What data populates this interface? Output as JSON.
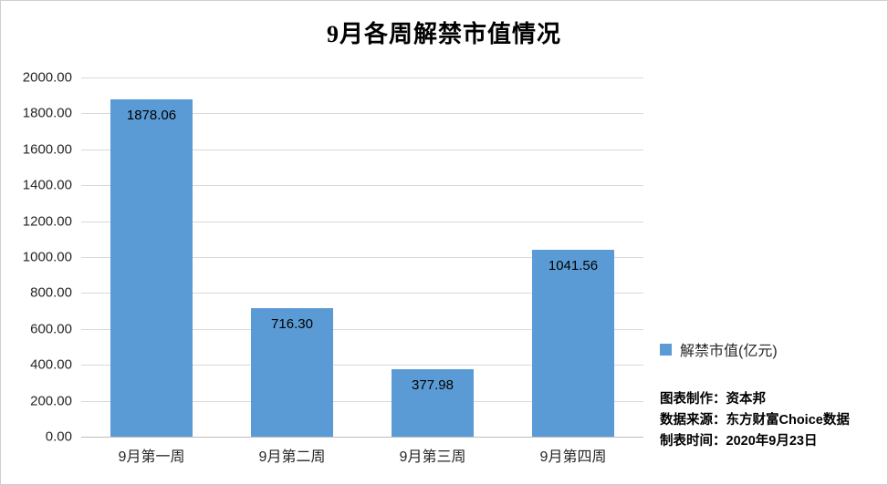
{
  "title": "9月各周解禁市值情况",
  "legend": {
    "label": "解禁市值(亿元)",
    "color": "#5B9BD5"
  },
  "notes": [
    "图表制作：资本邦",
    "数据来源：东方财富Choice数据",
    "制表时间：2020年9月23日"
  ],
  "chart_data": {
    "type": "bar",
    "categories": [
      "9月第一周",
      "9月第二周",
      "9月第三周",
      "9月第四周"
    ],
    "values": [
      1878.06,
      716.3,
      377.98,
      1041.56
    ],
    "value_labels": [
      "1878.06",
      "716.30",
      "377.98",
      "1041.56"
    ],
    "title": "9月各周解禁市值情况",
    "xlabel": "",
    "ylabel": "",
    "ylim": [
      0,
      2000
    ],
    "ytick_step": 200,
    "ytick_format_decimals": 2,
    "bar_color": "#5B9BD5",
    "grid": true,
    "legend_entries": [
      "解禁市值(亿元)"
    ],
    "legend_position": "right"
  }
}
